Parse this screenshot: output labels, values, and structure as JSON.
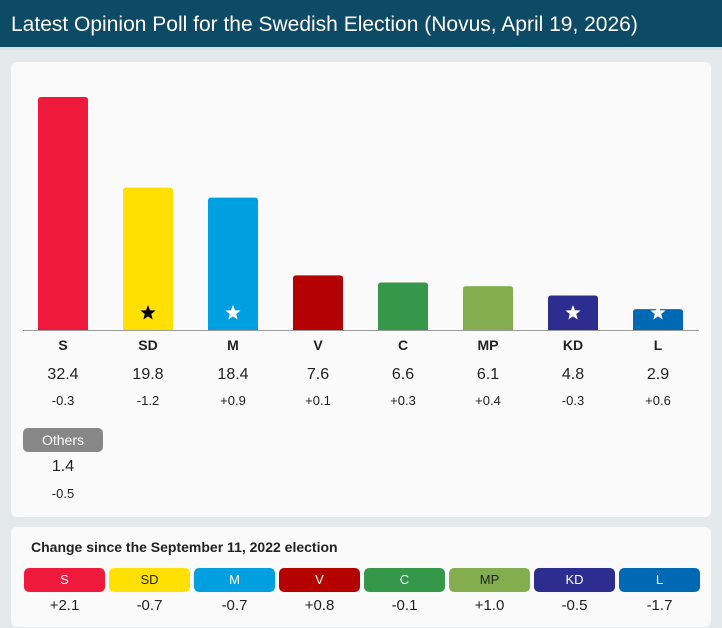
{
  "header": {
    "title": "Latest Opinion Poll for the Swedish Election (Novus, April 19, 2026)"
  },
  "chart_data": {
    "type": "bar",
    "title": "Latest Opinion Poll for the Swedish Election (Novus, April 19, 2026)",
    "categories": [
      "S",
      "SD",
      "M",
      "V",
      "C",
      "MP",
      "KD",
      "L"
    ],
    "values": [
      32.4,
      19.8,
      18.4,
      7.6,
      6.6,
      6.1,
      4.8,
      2.9
    ],
    "value_labels": [
      "32.4",
      "19.8",
      "18.4",
      "7.6",
      "6.6",
      "6.1",
      "4.8",
      "2.9"
    ],
    "changes": [
      "-0.3",
      "-1.2",
      "+0.9",
      "+0.1",
      "+0.3",
      "+0.4",
      "-0.3",
      "+0.6"
    ],
    "colors": [
      "#ef1a3b",
      "#ffe000",
      "#009fe0",
      "#b50000",
      "#35974a",
      "#83ad4e",
      "#2d2d8f",
      "#0069b4"
    ],
    "stars": [
      null,
      "black",
      "white",
      null,
      null,
      null,
      "white",
      "white"
    ],
    "ylim": [
      0,
      32.4
    ],
    "others": {
      "label": "Others",
      "value": "1.4",
      "change": "-0.5",
      "color": "#878787"
    }
  },
  "change_section": {
    "title": "Change since the September 11, 2022 election",
    "parties": [
      "S",
      "SD",
      "M",
      "V",
      "C",
      "MP",
      "KD",
      "L"
    ],
    "changes": [
      "+2.1",
      "-0.7",
      "-0.7",
      "+0.8",
      "-0.1",
      "+1.0",
      "-0.5",
      "-1.7"
    ],
    "label_colors": [
      "#ffffff",
      "#222222",
      "#ffffff",
      "#ffffff",
      "#ffffff",
      "#222222",
      "#ffffff",
      "#ffffff"
    ]
  }
}
